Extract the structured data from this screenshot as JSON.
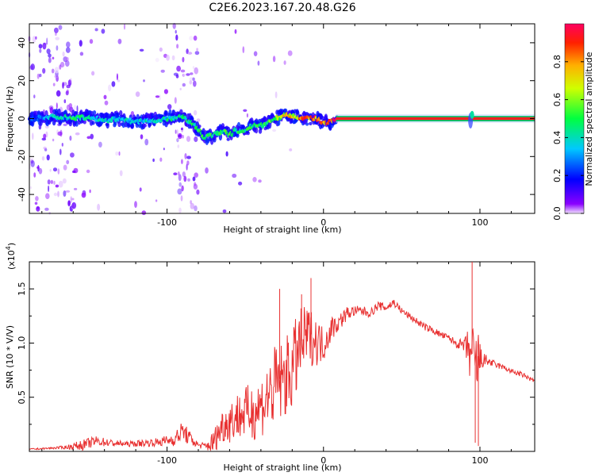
{
  "title": "C2E6.2023.167.20.48.G26",
  "chart_data": [
    {
      "type": "heatmap",
      "xlabel": "Height of straight line (km)",
      "ylabel": "Frequency (Hz)",
      "xlim": [
        -188,
        135
      ],
      "ylim": [
        -50,
        50
      ],
      "x_ticks": [
        -100,
        0,
        100
      ],
      "x_tick_labels": [
        "-100",
        "0",
        "100"
      ],
      "y_ticks": [
        -40,
        -20,
        0,
        20,
        40
      ],
      "y_tick_labels": [
        "-40",
        "-20",
        "0",
        "20",
        "40"
      ],
      "grid": false,
      "colorbar": {
        "label": "Normalized spectral amplitude",
        "range": [
          0,
          1
        ],
        "ticks": [
          0.0,
          0.2,
          0.4,
          0.6,
          0.8
        ],
        "tick_labels": [
          "0.0",
          "0.2",
          "0.4",
          "0.6",
          "0.8"
        ],
        "colormap": [
          "#f0e0ff",
          "#8a00ff",
          "#0000ff",
          "#00c8ff",
          "#00ff40",
          "#d0ff00",
          "#ffb000",
          "#ff2000",
          "#ff0060"
        ]
      },
      "ridge": {
        "x": [
          -185,
          -170,
          -160,
          -150,
          -140,
          -130,
          -120,
          -110,
          -100,
          -90,
          -85,
          -80,
          -76,
          -72,
          -68,
          -64,
          -60,
          -56,
          -52,
          -48,
          -44,
          -40,
          -36,
          -32,
          -28,
          -24,
          -20,
          -16,
          -12,
          -8,
          -4,
          0,
          4,
          8,
          12,
          20,
          40,
          60,
          80,
          90,
          93,
          95,
          97,
          100,
          120,
          135
        ],
        "freq": [
          0,
          1,
          0,
          1,
          -1,
          0,
          -2,
          -1,
          0,
          1,
          -2,
          -6,
          -10,
          -9,
          -8,
          -6,
          -9,
          -6,
          -7,
          -5,
          -3,
          -4,
          -2,
          0,
          1,
          2,
          1,
          1,
          0,
          0,
          0,
          -2,
          -2,
          0,
          0,
          0,
          0,
          0,
          0,
          0,
          -3,
          1,
          2,
          0,
          0,
          0
        ],
        "strength": [
          0.25,
          0.45,
          0.5,
          0.45,
          0.4,
          0.42,
          0.4,
          0.42,
          0.45,
          0.5,
          0.5,
          0.55,
          0.55,
          0.5,
          0.5,
          0.55,
          0.55,
          0.5,
          0.5,
          0.5,
          0.5,
          0.55,
          0.55,
          0.6,
          0.65,
          0.75,
          0.8,
          0.85,
          0.9,
          0.95,
          0.95,
          0.9,
          0.95,
          1.0,
          1.0,
          1.0,
          1.0,
          1.0,
          1.0,
          1.0,
          0.9,
          0.9,
          0.95,
          1.0,
          1.0,
          1.0
        ]
      }
    },
    {
      "type": "line",
      "xlabel": "Height of straight line (km)",
      "ylabel": "SNR (10 * V/V)",
      "y_multiplier": "(x10",
      "y_multiplier_exp": "4",
      "y_multiplier_close": ")",
      "xlim": [
        -188,
        135
      ],
      "ylim": [
        0,
        1.75
      ],
      "x_ticks": [
        -100,
        0,
        100
      ],
      "x_tick_labels": [
        "-100",
        "0",
        "100"
      ],
      "y_ticks": [
        0.5,
        1.0,
        1.5
      ],
      "y_tick_labels": [
        "0.5",
        "1.0",
        "1.5"
      ],
      "grid": false,
      "series": [
        {
          "color": "#e83030",
          "x": [
            -188,
            -175,
            -165,
            -155,
            -145,
            -135,
            -125,
            -115,
            -105,
            -95,
            -90,
            -85,
            -80,
            -75,
            -70,
            -65,
            -60,
            -55,
            -50,
            -45,
            -40,
            -35,
            -30,
            -25,
            -20,
            -15,
            -10,
            -5,
            0,
            5,
            10,
            15,
            20,
            25,
            30,
            35,
            40,
            45,
            50,
            55,
            60,
            65,
            70,
            75,
            80,
            85,
            90,
            93,
            95,
            97,
            99,
            101,
            105,
            110,
            115,
            120,
            125,
            130,
            135
          ],
          "y": [
            0.02,
            0.03,
            0.04,
            0.06,
            0.1,
            0.08,
            0.07,
            0.08,
            0.09,
            0.12,
            0.2,
            0.12,
            0.06,
            0.05,
            0.1,
            0.25,
            0.3,
            0.35,
            0.38,
            0.4,
            0.45,
            0.55,
            0.65,
            0.7,
            0.8,
            1.0,
            1.1,
            1.05,
            1.0,
            1.15,
            1.2,
            1.28,
            1.3,
            1.3,
            1.28,
            1.35,
            1.33,
            1.38,
            1.3,
            1.25,
            1.2,
            1.15,
            1.12,
            1.08,
            1.05,
            1.0,
            0.98,
            0.95,
            0.9,
            0.8,
            0.88,
            0.85,
            0.84,
            0.8,
            0.78,
            0.74,
            0.72,
            0.69,
            0.65
          ],
          "noise": [
            0.01,
            0.01,
            0.02,
            0.06,
            0.06,
            0.04,
            0.03,
            0.04,
            0.05,
            0.08,
            0.12,
            0.08,
            0.03,
            0.05,
            0.15,
            0.2,
            0.25,
            0.28,
            0.3,
            0.35,
            0.35,
            0.45,
            0.5,
            0.45,
            0.5,
            0.45,
            0.35,
            0.3,
            0.2,
            0.15,
            0.1,
            0.08,
            0.06,
            0.06,
            0.05,
            0.05,
            0.05,
            0.05,
            0.04,
            0.04,
            0.04,
            0.04,
            0.04,
            0.04,
            0.04,
            0.05,
            0.08,
            0.3,
            0.4,
            0.45,
            0.4,
            0.1,
            0.06,
            0.04,
            0.03,
            0.03,
            0.03,
            0.03,
            0.03
          ],
          "spikes": [
            [
              -28,
              1.5
            ],
            [
              -8,
              1.6
            ],
            [
              -14,
              1.45
            ],
            [
              95,
              1.75
            ],
            [
              99,
              0.05
            ],
            [
              97,
              0.08
            ]
          ]
        }
      ]
    }
  ]
}
